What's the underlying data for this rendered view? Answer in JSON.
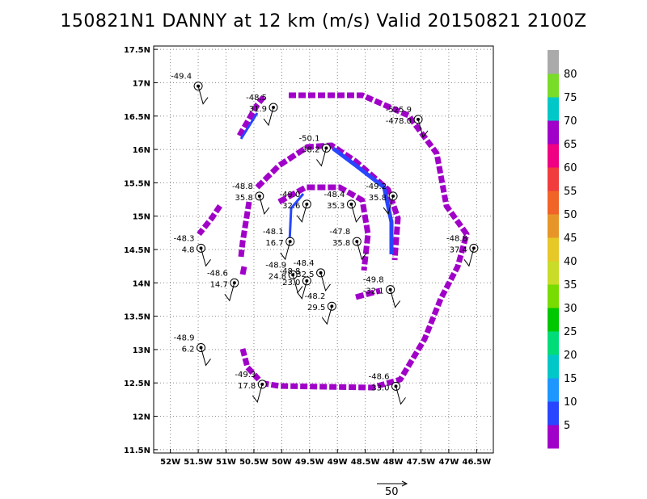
{
  "title": "150821N1 DANNY at 12 km (m/s) Valid 20150821  2100Z",
  "chart_data": {
    "type": "map",
    "title": "150821N1 DANNY at 12 km (m/s) Valid 20150821  2100Z",
    "xlim": [
      -52.3,
      -46.2
    ],
    "ylim": [
      11.45,
      17.55
    ],
    "x_ticks": [
      -52,
      -51.5,
      -51,
      -50.5,
      -50,
      -49.5,
      -49,
      -48.5,
      -48,
      -47.5,
      -47,
      -46.5
    ],
    "x_tick_labels": [
      "52W",
      "51.5W",
      "51W",
      "50.5W",
      "50W",
      "49.5W",
      "49W",
      "48.5W",
      "48W",
      "47.5W",
      "47W",
      "46.5W"
    ],
    "y_ticks": [
      11.5,
      12,
      12.5,
      13,
      13.5,
      14,
      14.5,
      15,
      15.5,
      16,
      16.5,
      17,
      17.5
    ],
    "y_tick_labels": [
      "11.5N",
      "12N",
      "12.5N",
      "13N",
      "13.5N",
      "14N",
      "14.5N",
      "15N",
      "15.5N",
      "16N",
      "16.5N",
      "17N",
      "17.5N"
    ],
    "grid": true,
    "colorbar": {
      "labels": [
        "5",
        "10",
        "15",
        "20",
        "25",
        "30",
        "35",
        "40",
        "45",
        "50",
        "55",
        "60",
        "65",
        "70",
        "75",
        "80"
      ],
      "colors": [
        "#a000c8",
        "#2846ff",
        "#1e96ff",
        "#00c8c8",
        "#00dc78",
        "#00c800",
        "#78dc00",
        "#c8dc28",
        "#e6c828",
        "#e69628",
        "#f06428",
        "#f03c3c",
        "#f00082",
        "#a000c8",
        "#00c8c8",
        "#78dc28",
        "#aaaaaa"
      ]
    },
    "observations": [
      {
        "lon": -51.5,
        "lat": 16.95,
        "top": "-49.4",
        "bottom": ""
      },
      {
        "lon": -50.15,
        "lat": 16.63,
        "top": "-48.5",
        "bottom": "31.9"
      },
      {
        "lon": -47.55,
        "lat": 16.45,
        "top": "-525.9",
        "bottom": "-478.0"
      },
      {
        "lon": -49.2,
        "lat": 16.02,
        "top": "-50.1",
        "bottom": "38.2"
      },
      {
        "lon": -50.4,
        "lat": 15.3,
        "top": "-48.8",
        "bottom": "35.8"
      },
      {
        "lon": -49.55,
        "lat": 15.18,
        "top": "-49.0",
        "bottom": "32.6"
      },
      {
        "lon": -48.75,
        "lat": 15.18,
        "top": "-48.4",
        "bottom": "35.3"
      },
      {
        "lon": -48.0,
        "lat": 15.3,
        "top": "-49.2",
        "bottom": "35.8"
      },
      {
        "lon": -51.45,
        "lat": 14.52,
        "top": "-48.3",
        "bottom": "4.8"
      },
      {
        "lon": -49.85,
        "lat": 14.62,
        "top": "-48.1",
        "bottom": "16.7"
      },
      {
        "lon": -48.65,
        "lat": 14.62,
        "top": "-47.8",
        "bottom": "35.8"
      },
      {
        "lon": -46.55,
        "lat": 14.52,
        "top": "-48.8",
        "bottom": "37.4"
      },
      {
        "lon": -49.8,
        "lat": 14.12,
        "top": "-48.9",
        "bottom": "24.8"
      },
      {
        "lon": -49.55,
        "lat": 14.03,
        "top": "-48.8",
        "bottom": "23.0"
      },
      {
        "lon": -49.3,
        "lat": 14.15,
        "top": "-48.4",
        "bottom": "32.5"
      },
      {
        "lon": -50.85,
        "lat": 14.0,
        "top": "-48.6",
        "bottom": "14.7"
      },
      {
        "lon": -48.05,
        "lat": 13.9,
        "top": "-49.8",
        "bottom": "-32.1"
      },
      {
        "lon": -49.1,
        "lat": 13.65,
        "top": "-48.2",
        "bottom": "29.5"
      },
      {
        "lon": -51.45,
        "lat": 13.03,
        "top": "-48.9",
        "bottom": "6.2"
      },
      {
        "lon": -50.35,
        "lat": 12.48,
        "top": "-49.3",
        "bottom": "17.8"
      },
      {
        "lon": -47.95,
        "lat": 12.45,
        "top": "-48.6",
        "bottom": "33.0"
      }
    ],
    "reference_vector": {
      "label": "50"
    }
  }
}
